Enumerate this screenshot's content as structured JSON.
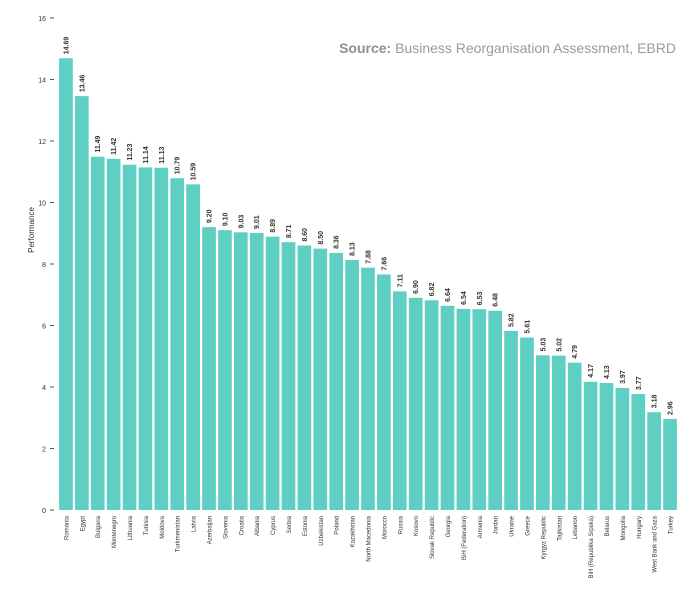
{
  "source": {
    "label": "Source:",
    "text": "Business Reorganisation Assessment, EBRD"
  },
  "colors": {
    "bar": "#5ecfc3",
    "axis": "#555555",
    "text": "#333333"
  },
  "chart_data": {
    "type": "bar",
    "title": "",
    "xlabel": "",
    "ylabel": "Performance",
    "ylim": [
      0,
      16
    ],
    "yticks": [
      0,
      2,
      4,
      6,
      8,
      10,
      12,
      14,
      16
    ],
    "grid": false,
    "categories": [
      "Romania",
      "Egypt",
      "Bulgaria",
      "Montenegro",
      "Lithuania",
      "Tunisia",
      "Moldova",
      "Turkmenistan",
      "Latvia",
      "Azerbaijan",
      "Slovenia",
      "Croatia",
      "Albania",
      "Cyprus",
      "Serbia",
      "Estonia",
      "Uzbekistan",
      "Poland",
      "Kazakhstan",
      "North Macedonia",
      "Morocco",
      "Russia",
      "Kosovo",
      "Slovak Republic",
      "Georgia",
      "BiH (Federation)",
      "Armenia",
      "Jordan",
      "Ukraine",
      "Greece",
      "Kyrgyz Republic",
      "Tajikistan",
      "Lebanon",
      "BiH (Republika Srpska)",
      "Belarus",
      "Mongolia",
      "Hungary",
      "West Bank and Gaza",
      "Turkey"
    ],
    "values": [
      14.69,
      13.46,
      11.49,
      11.42,
      11.23,
      11.14,
      11.13,
      10.79,
      10.59,
      9.2,
      9.1,
      9.03,
      9.01,
      8.89,
      8.71,
      8.6,
      8.5,
      8.36,
      8.13,
      7.88,
      7.66,
      7.11,
      6.9,
      6.82,
      6.64,
      6.54,
      6.53,
      6.48,
      5.82,
      5.61,
      5.03,
      5.02,
      4.79,
      4.17,
      4.13,
      3.97,
      3.77,
      3.18,
      2.96
    ],
    "labels": [
      "14.69",
      "13.46",
      "11.49",
      "11.42",
      "11.23",
      "11.14",
      "11.13",
      "10.79",
      "10.59",
      "9.20",
      "9.10",
      "9.03",
      "9.01",
      "8.89",
      "8.71",
      "8.60",
      "8.50",
      "8.36",
      "8.13",
      "7.88",
      "7.66",
      "7.11",
      "6.90",
      "6.82",
      "6.64",
      "6.54",
      "6.53",
      "6.48",
      "5.82",
      "5.61",
      "5.03",
      "5.02",
      "4.79",
      "4.17",
      "4.13",
      "3.97",
      "3.77",
      "3.18",
      "2.96"
    ]
  }
}
